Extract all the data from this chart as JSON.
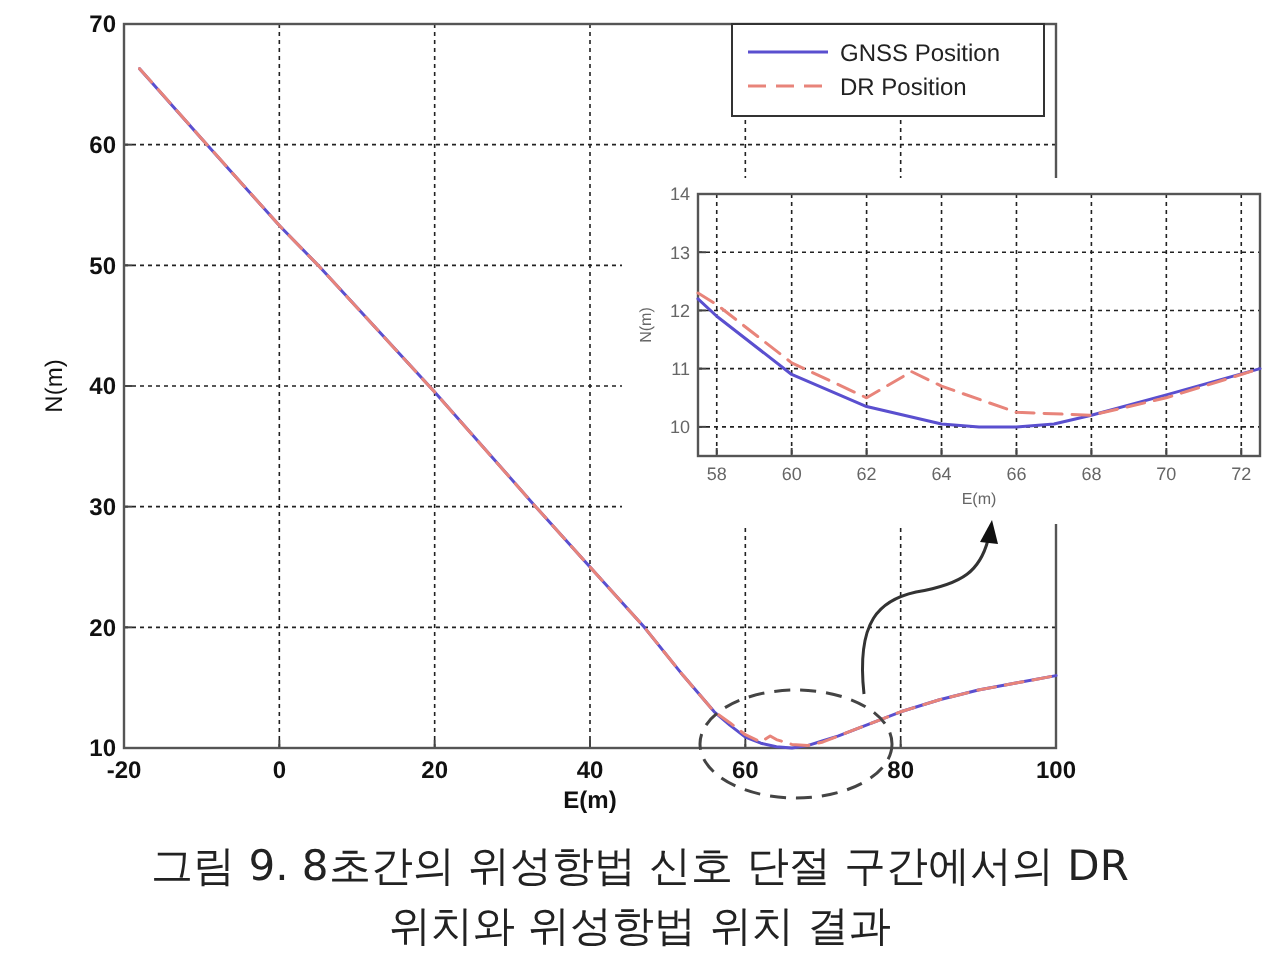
{
  "chart_data": [
    {
      "type": "line",
      "xlabel": "E(m)",
      "ylabel": "N(m)",
      "xlim": [
        -20,
        100
      ],
      "ylim": [
        10,
        70
      ],
      "xticks": [
        -20,
        0,
        20,
        40,
        60,
        80,
        100
      ],
      "yticks": [
        10,
        20,
        30,
        40,
        50,
        60,
        70
      ],
      "grid": true,
      "legend": "top right",
      "series": [
        {
          "name": "GNSS Position",
          "color": "#5a4fcf",
          "line_style": "solid",
          "x": [
            -18,
            -10,
            0,
            5,
            20,
            33,
            40,
            47,
            52,
            56,
            58,
            60,
            62,
            64,
            66,
            68,
            70,
            72,
            76,
            80,
            85,
            90,
            95,
            100
          ],
          "values": [
            66.3,
            60.5,
            53.3,
            50,
            39.5,
            30,
            25,
            20,
            16,
            13,
            11.9,
            10.9,
            10.4,
            10.1,
            10,
            10.2,
            10.6,
            11,
            12,
            13,
            14,
            14.8,
            15.4,
            16
          ]
        },
        {
          "name": "DR Position",
          "color": "#e8847a",
          "line_style": "dashed",
          "x": [
            -18,
            -10,
            0,
            5,
            20,
            33,
            40,
            47,
            52,
            56,
            58,
            60,
            62,
            63.2,
            64,
            66,
            68,
            70,
            72,
            76,
            80,
            85,
            90,
            95,
            100
          ],
          "values": [
            66.3,
            60.5,
            53.3,
            50,
            39.5,
            30,
            25,
            20,
            16,
            13,
            12.1,
            11.1,
            10.5,
            11,
            10.7,
            10.3,
            10.2,
            10.5,
            11,
            12,
            13,
            14,
            14.8,
            15.4,
            16
          ]
        }
      ],
      "annotations": [
        "그림 9. 8초간의 위성항법 신호 단절 구간에서의 DR",
        "위치와 위성항법 위치 결과"
      ]
    },
    {
      "type": "line",
      "xlabel": "E(m)",
      "ylabel": "N(m)",
      "xlim": [
        57.5,
        72.5
      ],
      "ylim": [
        9.5,
        14
      ],
      "xticks": [
        58,
        60,
        62,
        64,
        66,
        68,
        70,
        72
      ],
      "yticks": [
        10,
        11,
        12,
        13,
        14
      ],
      "grid": true,
      "series": [
        {
          "color": "#5a4fcf",
          "line_style": "solid",
          "x": [
            57.5,
            58,
            60,
            62,
            64,
            65,
            66,
            67,
            68,
            70,
            72.5
          ],
          "values": [
            12.2,
            11.9,
            10.9,
            10.35,
            10.05,
            10,
            10,
            10.05,
            10.2,
            10.55,
            11
          ]
        },
        {
          "color": "#e8847a",
          "line_style": "dashed",
          "x": [
            57.5,
            58,
            60,
            62,
            63.2,
            64,
            66,
            68,
            70,
            72.5
          ],
          "values": [
            12.3,
            12.1,
            11.1,
            10.5,
            10.95,
            10.7,
            10.25,
            10.2,
            10.5,
            11
          ]
        }
      ]
    }
  ]
}
